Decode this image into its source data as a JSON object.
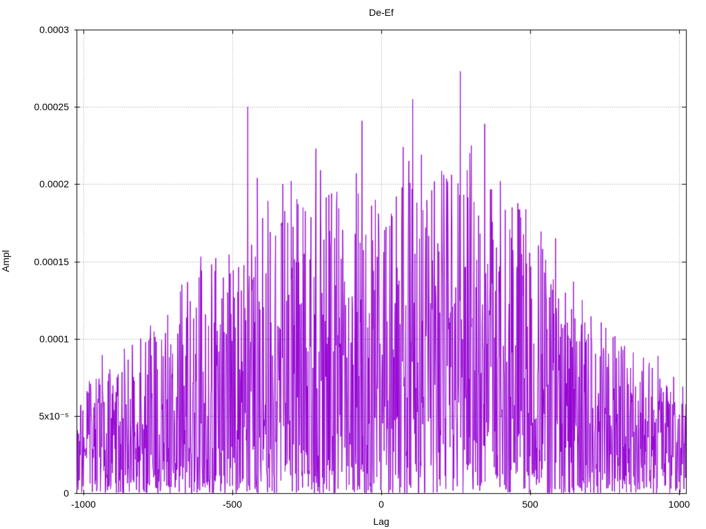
{
  "chart_data": {
    "type": "line",
    "style": "dense-noise-spectrum",
    "title": "De-Ef",
    "xlabel": "Lag",
    "ylabel": "Ampl",
    "xlim": [
      -1024,
      1024
    ],
    "ylim": [
      0,
      0.0003
    ],
    "grid": true,
    "legend": "none",
    "x_ticks": [
      {
        "v": -1000,
        "label": "-1000"
      },
      {
        "v": -500,
        "label": "-500"
      },
      {
        "v": 0,
        "label": "0"
      },
      {
        "v": 500,
        "label": "500"
      },
      {
        "v": 1000,
        "label": "1000"
      }
    ],
    "y_ticks": [
      {
        "v": 0,
        "label": "0"
      },
      {
        "v": 5e-05,
        "label": "5x10⁻⁵"
      },
      {
        "v": 0.0001,
        "label": "0.0001"
      },
      {
        "v": 0.00015,
        "label": "0.00015"
      },
      {
        "v": 0.0002,
        "label": "0.0002"
      },
      {
        "v": 0.00025,
        "label": "0.00025"
      },
      {
        "v": 0.0003,
        "label": "0.0003"
      }
    ],
    "series": [
      {
        "name": "De-Ef",
        "color": "#9400d3",
        "n_points": 1600,
        "seed": 9,
        "amplitude_exponent": 1.7,
        "spike_probability": 0.02,
        "envelope": [
          [
            -1024,
            7e-05
          ],
          [
            -950,
            8e-05
          ],
          [
            -900,
            9e-05
          ],
          [
            -850,
            9.7e-05
          ],
          [
            -800,
            0.000105
          ],
          [
            -750,
            0.000115
          ],
          [
            -700,
            0.00013
          ],
          [
            -650,
            0.000138
          ],
          [
            -600,
            0.00015
          ],
          [
            -550,
            0.000158
          ],
          [
            -500,
            0.000165
          ],
          [
            -450,
            0.000172
          ],
          [
            -400,
            0.00018
          ],
          [
            -350,
            0.000185
          ],
          [
            -300,
            0.00019
          ],
          [
            -200,
            0.000195
          ],
          [
            -100,
            0.000198
          ],
          [
            0,
            0.0002
          ],
          [
            100,
            0.000208
          ],
          [
            200,
            0.00021
          ],
          [
            300,
            0.000205
          ],
          [
            400,
            0.0002
          ],
          [
            450,
            0.000195
          ],
          [
            500,
            0.00018
          ],
          [
            550,
            0.000155
          ],
          [
            600,
            0.000145
          ],
          [
            650,
            0.000135
          ],
          [
            700,
            0.00012
          ],
          [
            750,
            0.00011
          ],
          [
            800,
            0.0001
          ],
          [
            850,
            9.5e-05
          ],
          [
            900,
            8.5e-05
          ],
          [
            950,
            8e-05
          ],
          [
            1024,
            7.5e-05
          ]
        ],
        "notable_peaks": [
          [
            -670,
            0.000135
          ],
          [
            -570,
            0.000148
          ],
          [
            -449,
            0.00025
          ],
          [
            -416,
            0.000204
          ],
          [
            -331,
            0.0002
          ],
          [
            -303,
            0.000202
          ],
          [
            -280,
            0.000187
          ],
          [
            -220,
            0.000223
          ],
          [
            -204,
            0.000209
          ],
          [
            -167,
            0.000194
          ],
          [
            -149,
            0.000195
          ],
          [
            -84,
            0.000207
          ],
          [
            -64,
            0.000241
          ],
          [
            -33,
            0.000186
          ],
          [
            50,
            0.000192
          ],
          [
            73,
            0.000224
          ],
          [
            93,
            0.000215
          ],
          [
            105,
            0.000255
          ],
          [
            135,
            0.000219
          ],
          [
            170,
            0.000196
          ],
          [
            236,
            0.000206
          ],
          [
            266,
            0.000273
          ],
          [
            303,
            0.000225
          ],
          [
            347,
            0.000239
          ],
          [
            400,
            0.000202
          ],
          [
            440,
            0.000185
          ],
          [
            585,
            0.000165
          ],
          [
            755,
            0.000107
          ]
        ],
        "max_value": 0.000273,
        "max_at_lag": 266
      }
    ]
  },
  "colors": {
    "background": "#ffffff",
    "axis": "#000000",
    "grid": "#9a9a9a",
    "text": "#000000",
    "series": "#9400d3"
  }
}
